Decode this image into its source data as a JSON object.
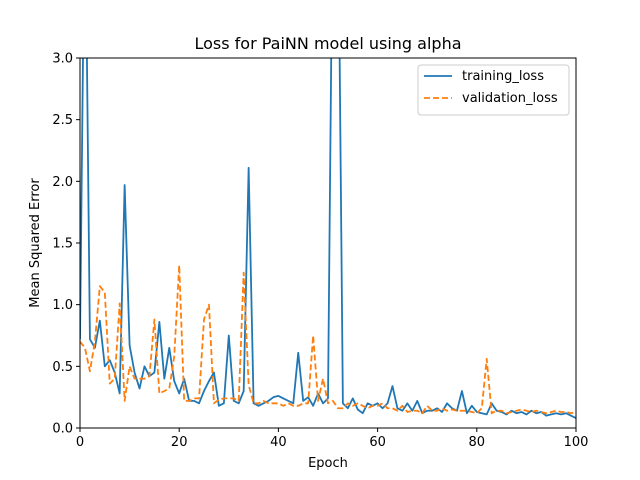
{
  "chart_data": {
    "type": "line",
    "title": "Loss for PaiNN model using alpha",
    "xlabel": "Epoch",
    "ylabel": "Mean Squared Error",
    "xlim": [
      0,
      100
    ],
    "ylim": [
      0,
      3.0
    ],
    "xticks": [
      0,
      20,
      40,
      60,
      80,
      100
    ],
    "xtick_labels": [
      "0",
      "20",
      "40",
      "60",
      "80",
      "100"
    ],
    "yticks": [
      0.0,
      0.5,
      1.0,
      1.5,
      2.0,
      2.5,
      3.0
    ],
    "ytick_labels": [
      "0.0",
      "0.5",
      "1.0",
      "1.5",
      "2.0",
      "2.5",
      "3.0"
    ],
    "grid": false,
    "legend_position": "top-right",
    "series": [
      {
        "name": "training_loss",
        "color": "#1f77b4",
        "style": "solid",
        "x": [
          0,
          1,
          2,
          3,
          4,
          5,
          6,
          7,
          8,
          9,
          10,
          11,
          12,
          13,
          14,
          15,
          16,
          17,
          18,
          19,
          20,
          21,
          22,
          23,
          24,
          25,
          26,
          27,
          28,
          29,
          30,
          31,
          32,
          33,
          34,
          35,
          36,
          37,
          38,
          39,
          40,
          41,
          42,
          43,
          44,
          45,
          46,
          47,
          48,
          49,
          50,
          51,
          52,
          53,
          54,
          55,
          56,
          57,
          58,
          59,
          60,
          61,
          62,
          63,
          64,
          65,
          66,
          67,
          68,
          69,
          70,
          71,
          72,
          73,
          74,
          75,
          76,
          77,
          78,
          79,
          80,
          81,
          82,
          83,
          84,
          85,
          86,
          87,
          88,
          89,
          90,
          91,
          92,
          93,
          94,
          95,
          96,
          97,
          98,
          99,
          100
        ],
        "values": [
          0.72,
          4.5,
          0.72,
          0.65,
          0.87,
          0.5,
          0.55,
          0.45,
          0.28,
          1.97,
          0.67,
          0.45,
          0.32,
          0.5,
          0.42,
          0.45,
          0.86,
          0.4,
          0.65,
          0.38,
          0.28,
          0.4,
          0.22,
          0.22,
          0.2,
          0.3,
          0.38,
          0.45,
          0.18,
          0.2,
          0.75,
          0.22,
          0.2,
          0.3,
          2.11,
          0.2,
          0.18,
          0.2,
          0.22,
          0.25,
          0.26,
          0.24,
          0.22,
          0.2,
          0.61,
          0.22,
          0.25,
          0.18,
          0.28,
          0.2,
          0.24,
          4.5,
          4.5,
          0.2,
          0.16,
          0.24,
          0.15,
          0.12,
          0.2,
          0.18,
          0.2,
          0.16,
          0.2,
          0.34,
          0.16,
          0.14,
          0.2,
          0.14,
          0.22,
          0.12,
          0.14,
          0.14,
          0.16,
          0.13,
          0.2,
          0.16,
          0.14,
          0.3,
          0.12,
          0.18,
          0.13,
          0.12,
          0.11,
          0.2,
          0.14,
          0.13,
          0.11,
          0.14,
          0.12,
          0.13,
          0.11,
          0.14,
          0.12,
          0.13,
          0.1,
          0.11,
          0.12,
          0.11,
          0.12,
          0.1,
          0.08
        ]
      },
      {
        "name": "validation_loss",
        "color": "#ff7f0e",
        "style": "dashed",
        "x": [
          0,
          1,
          2,
          3,
          4,
          5,
          6,
          7,
          8,
          9,
          10,
          11,
          12,
          13,
          14,
          15,
          16,
          17,
          18,
          19,
          20,
          21,
          22,
          23,
          24,
          25,
          26,
          27,
          28,
          29,
          30,
          31,
          32,
          33,
          34,
          35,
          36,
          37,
          38,
          39,
          40,
          41,
          42,
          43,
          44,
          45,
          46,
          47,
          48,
          49,
          50,
          51,
          52,
          53,
          54,
          55,
          56,
          57,
          58,
          59,
          60,
          61,
          62,
          63,
          64,
          65,
          66,
          67,
          68,
          69,
          70,
          71,
          72,
          73,
          74,
          75,
          76,
          77,
          78,
          79,
          80,
          81,
          82,
          83,
          84,
          85,
          86,
          87,
          88,
          89,
          90,
          91,
          92,
          93,
          94,
          95,
          96,
          97,
          98,
          99,
          100
        ],
        "values": [
          0.7,
          0.65,
          0.46,
          0.7,
          1.15,
          1.1,
          0.36,
          0.4,
          1.01,
          0.22,
          0.5,
          0.4,
          0.4,
          0.4,
          0.42,
          0.88,
          0.28,
          0.3,
          0.32,
          0.58,
          1.32,
          0.22,
          0.22,
          0.24,
          0.24,
          0.88,
          1.0,
          0.2,
          0.23,
          0.24,
          0.24,
          0.24,
          0.22,
          1.26,
          0.35,
          0.2,
          0.2,
          0.22,
          0.2,
          0.2,
          0.2,
          0.18,
          0.2,
          0.18,
          0.18,
          0.2,
          0.2,
          0.75,
          0.22,
          0.4,
          0.2,
          0.22,
          0.16,
          0.16,
          0.2,
          0.18,
          0.2,
          0.18,
          0.16,
          0.18,
          0.18,
          0.2,
          0.16,
          0.16,
          0.14,
          0.18,
          0.13,
          0.14,
          0.14,
          0.12,
          0.18,
          0.14,
          0.14,
          0.16,
          0.14,
          0.15,
          0.14,
          0.14,
          0.14,
          0.13,
          0.12,
          0.16,
          0.56,
          0.12,
          0.14,
          0.14,
          0.12,
          0.13,
          0.14,
          0.15,
          0.14,
          0.13,
          0.14,
          0.13,
          0.12,
          0.13,
          0.14,
          0.13,
          0.13,
          0.12,
          0.13
        ]
      }
    ]
  }
}
